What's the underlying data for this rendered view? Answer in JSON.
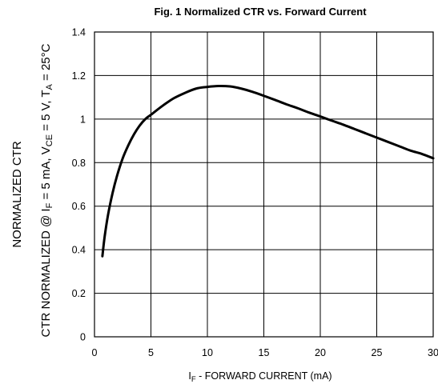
{
  "chart_data": {
    "type": "line",
    "title": "Fig. 1  Normalized CTR vs. Forward Current",
    "xlabel": {
      "pre": "I",
      "sub": "F",
      "post": " - FORWARD CURRENT (mA)"
    },
    "ylabel_outer": "NORMALIZED CTR",
    "ylabel_inner": {
      "p1": "CTR NORMALIZED @ I",
      "s1": "F",
      "p2": " = 5 mA, V",
      "s2": "CE",
      "p3": " = 5 V, T",
      "s3": "A",
      "p4": " = 25°C"
    },
    "xlim": [
      0,
      30
    ],
    "ylim": [
      0,
      1.4
    ],
    "x_ticks": [
      0,
      5,
      10,
      15,
      20,
      25,
      30
    ],
    "y_ticks": [
      0,
      0.2,
      0.4,
      0.6,
      0.8,
      1,
      1.2,
      1.4
    ],
    "x_tick_labels": [
      "0",
      "5",
      "10",
      "15",
      "20",
      "25",
      "30"
    ],
    "y_tick_labels": [
      "0",
      "0.2",
      "0.4",
      "0.6",
      "0.8",
      "1",
      "1.2",
      "1.4"
    ],
    "grid": true,
    "series": [
      {
        "x": [
          0.7,
          0.9,
          1.2,
          1.6,
          2,
          2.5,
          3,
          3.5,
          4,
          4.5,
          5,
          6,
          7,
          8,
          9,
          10,
          11,
          12,
          13,
          14,
          15,
          16,
          17,
          18,
          19,
          20,
          21,
          22,
          23,
          24,
          25,
          26,
          27,
          28,
          29,
          30
        ],
        "y": [
          0.37,
          0.46,
          0.56,
          0.66,
          0.74,
          0.82,
          0.88,
          0.93,
          0.97,
          1.0,
          1.02,
          1.06,
          1.095,
          1.12,
          1.14,
          1.148,
          1.152,
          1.15,
          1.14,
          1.125,
          1.107,
          1.088,
          1.068,
          1.05,
          1.03,
          1.012,
          0.993,
          0.975,
          0.955,
          0.935,
          0.915,
          0.895,
          0.875,
          0.855,
          0.84,
          0.82
        ],
        "color": "#000000"
      }
    ]
  }
}
